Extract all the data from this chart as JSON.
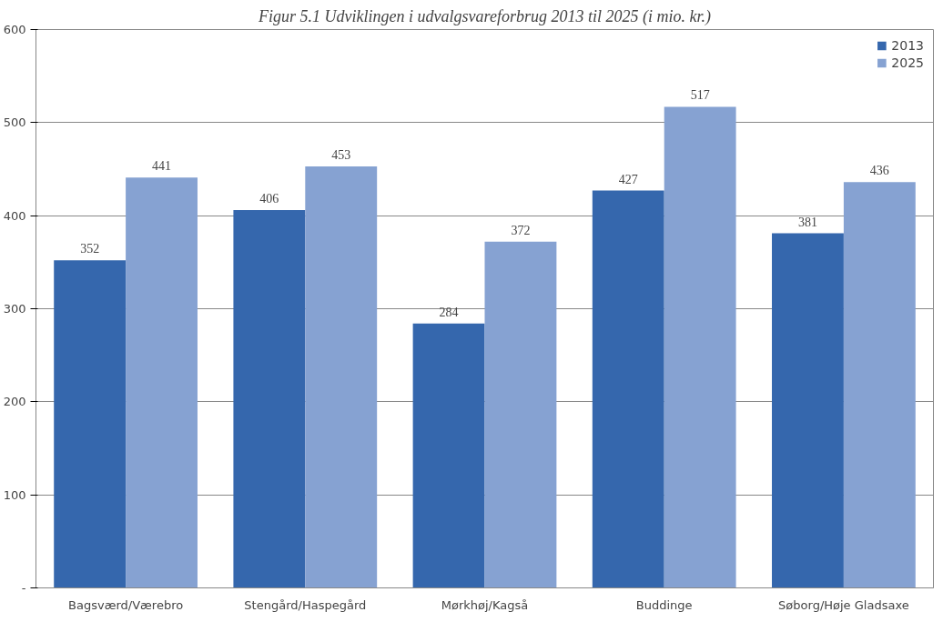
{
  "chart_data": {
    "type": "bar",
    "title": "Figur 5.1 Udviklingen i udvalgsvareforbrug 2013 til 2025 (i mio. kr.)",
    "categories": [
      "Bagsværd/Værebro",
      "Stengård/Haspegård",
      "Mørkhøj/Kagså",
      "Buddinge",
      "Søborg/Høje Gladsaxe"
    ],
    "series": [
      {
        "name": "2013",
        "color": "#3567ad",
        "values": [
          352,
          406,
          284,
          427,
          381
        ]
      },
      {
        "name": "2025",
        "color": "#86a2d2",
        "values": [
          441,
          453,
          372,
          517,
          436
        ]
      }
    ],
    "ylim": [
      0,
      600
    ],
    "yticks": [
      {
        "value": 0,
        "label": "-"
      },
      100,
      200,
      300,
      400,
      500,
      600
    ],
    "grid": "y",
    "legend": "top right",
    "data_labels": true
  }
}
